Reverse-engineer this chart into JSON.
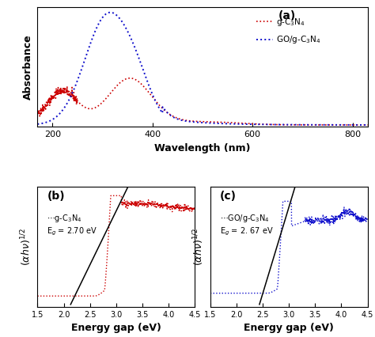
{
  "panel_a": {
    "label": "(a)",
    "xlabel": "Wavelength (nm)",
    "ylabel": "Absorbance",
    "xlim": [
      170,
      830
    ],
    "xticks": [
      200,
      400,
      600,
      800
    ],
    "legend_red": "g-C₃N₄",
    "legend_blue": "GO/g-C₃N₄",
    "red_color": "#cc0000",
    "blue_color": "#1010cc"
  },
  "panel_b": {
    "label": "(b)",
    "xlabel": "Energy gap (eV)",
    "ylabel": "(αhν)¹⁄²",
    "xlim": [
      1.5,
      4.5
    ],
    "xticks": [
      1.5,
      2.0,
      2.5,
      3.0,
      3.5,
      4.0,
      4.5
    ],
    "eg": 2.7,
    "eg_label": "2.70",
    "color": "#cc0000"
  },
  "panel_c": {
    "label": "(c)",
    "xlabel": "Energy gap (eV)",
    "ylabel": "(αhν)¹⁄²",
    "xlim": [
      1.5,
      4.5
    ],
    "xticks": [
      1.5,
      2.0,
      2.5,
      3.0,
      3.5,
      4.0,
      4.5
    ],
    "eg": 2.67,
    "eg_label": "2. 67",
    "color": "#1010cc"
  },
  "bg_color": "#ffffff",
  "font_size": 9
}
